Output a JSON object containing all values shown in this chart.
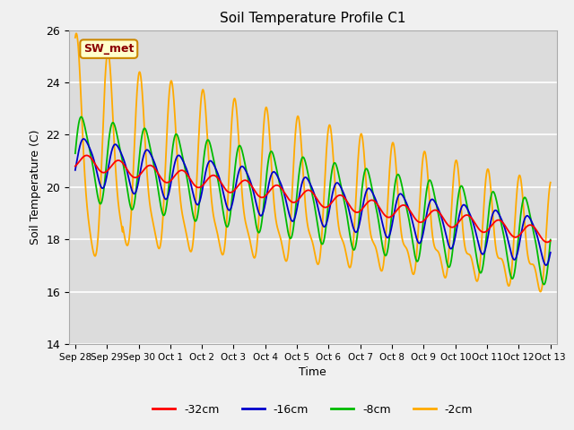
{
  "title": "Soil Temperature Profile C1",
  "xlabel": "Time",
  "ylabel": "Soil Temperature (C)",
  "ylim": [
    14,
    26
  ],
  "annotation": "SW_met",
  "legend_labels": [
    "-32cm",
    "-16cm",
    "-8cm",
    "-2cm"
  ],
  "line_colors": [
    "#ff0000",
    "#0000cc",
    "#00bb00",
    "#ffaa00"
  ],
  "fig_bg_color": "#f0f0f0",
  "plot_bg_color": "#dcdcdc",
  "tick_labels": [
    "Sep 28",
    "Sep 29",
    "Sep 30",
    "Oct 1",
    "Oct 2",
    "Oct 3",
    "Oct 4",
    "Oct 5",
    "Oct 6",
    "Oct 7",
    "Oct 8",
    "Oct 9",
    "Oct 10",
    "Oct 11",
    "Oct 12",
    "Oct 13"
  ],
  "tick_positions": [
    0,
    1,
    2,
    3,
    4,
    5,
    6,
    7,
    8,
    9,
    10,
    11,
    12,
    13,
    14,
    15
  ]
}
